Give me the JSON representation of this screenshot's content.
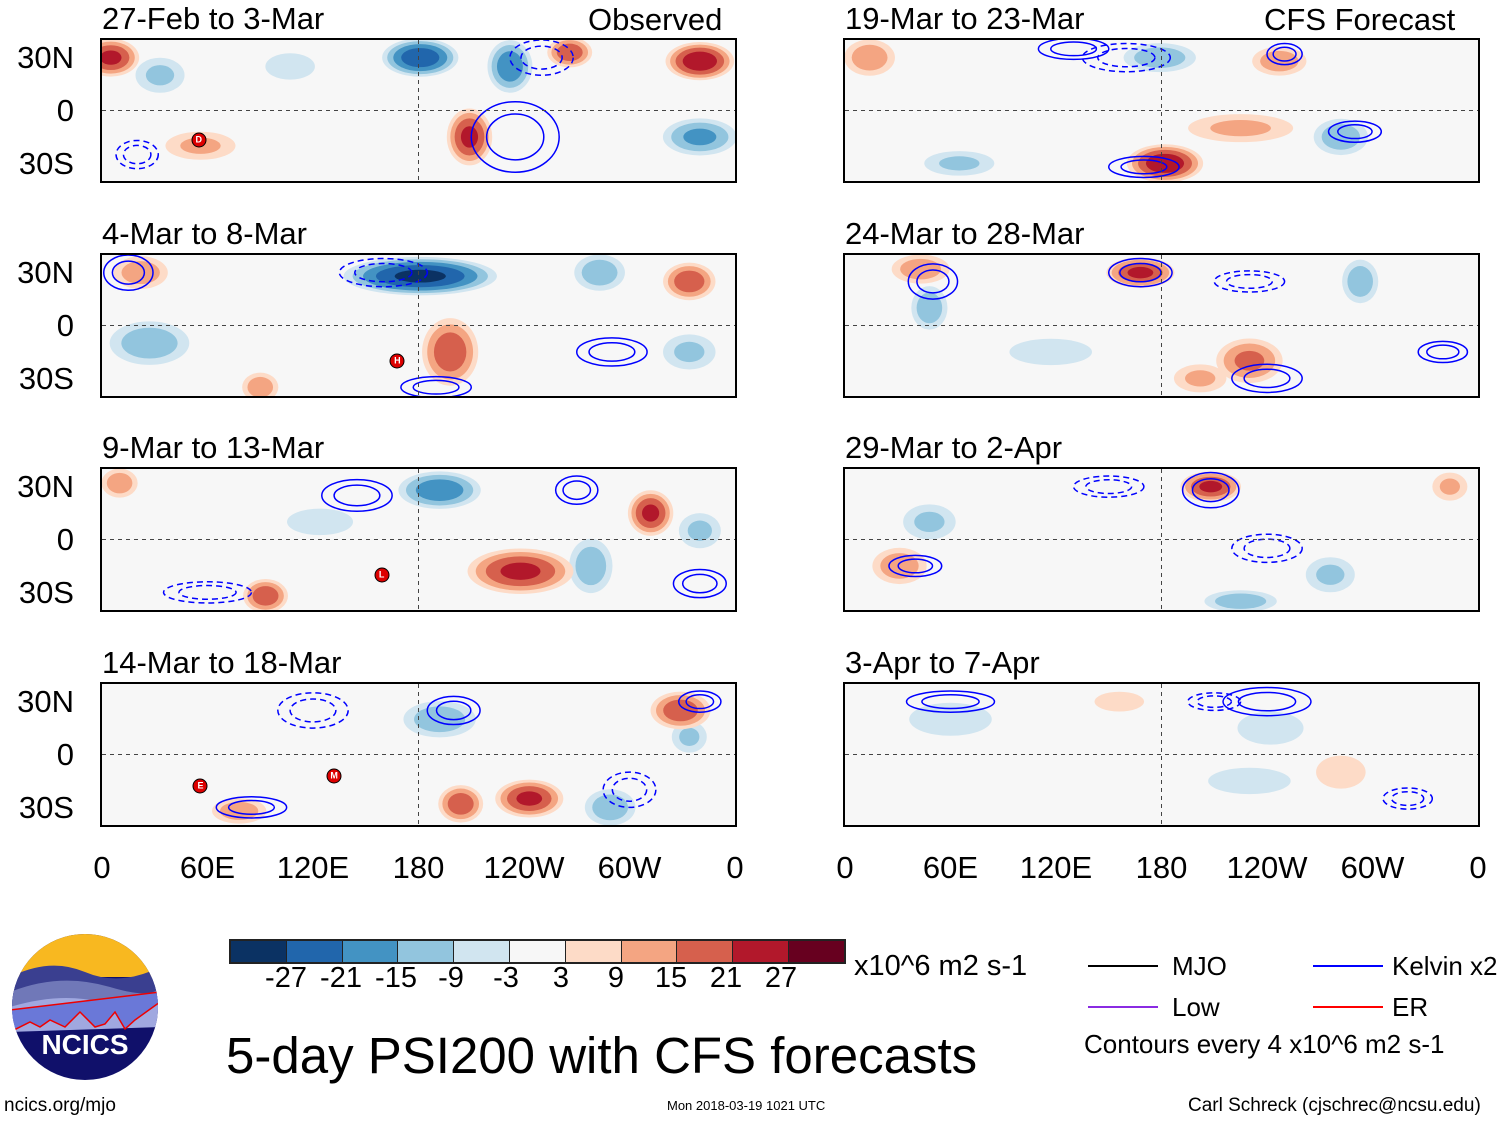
{
  "titles": {
    "observed": "Observed",
    "forecast": "CFS Forecast",
    "main": "5-day PSI200 with CFS forecasts"
  },
  "lat_labels": [
    "30N",
    "0",
    "30S"
  ],
  "lon_labels": [
    "0",
    "60E",
    "120E",
    "180",
    "120W",
    "60W",
    "0"
  ],
  "colorbar": {
    "colors": [
      "#0b3263",
      "#2166ac",
      "#4393c3",
      "#92c5de",
      "#d1e5f0",
      "#f7f7f7",
      "#fddbc7",
      "#f4a582",
      "#d6604d",
      "#b2182b",
      "#67001f"
    ],
    "labels": [
      "-27",
      "-21",
      "-15",
      "-9",
      "-3",
      "3",
      "9",
      "15",
      "21",
      "27"
    ],
    "units": "x10^6 m2 s-1"
  },
  "legend": {
    "items": [
      {
        "label": "MJO",
        "color": "#000000"
      },
      {
        "label": "Kelvin x2",
        "color": "#0000ff"
      },
      {
        "label": "Low",
        "color": "#8a2be2"
      },
      {
        "label": "ER",
        "color": "#ff0000"
      }
    ],
    "note": "Contours every 4 x10^6 m2 s-1"
  },
  "footer": {
    "url": "ncics.org/mjo",
    "timestamp": "Mon 2018-03-19 1021 UTC",
    "author": "Carl Schreck (cjschrec@ncsu.edu)"
  },
  "logo_text": "NCICS",
  "chart_data": {
    "type": "heatmap",
    "variable": "200-hPa streamfunction anomaly",
    "lon_range": [
      0,
      360
    ],
    "lat_range": [
      -40,
      40
    ],
    "panels": [
      {
        "title": "27-Feb to 3-Mar",
        "kind": "observed",
        "anomalies": [
          [
            5,
            30,
            24,
            15,
            10
          ],
          [
            181,
            30,
            -27,
            20,
            10
          ],
          [
            340,
            28,
            27,
            18,
            10
          ],
          [
            209,
            -15,
            24,
            12,
            15
          ],
          [
            232,
            25,
            -21,
            12,
            14
          ],
          [
            266,
            33,
            21,
            12,
            8
          ],
          [
            340,
            -15,
            -18,
            20,
            10
          ],
          [
            56,
            -20,
            12,
            20,
            8
          ],
          [
            33,
            20,
            -12,
            14,
            10
          ],
          [
            107,
            25,
            -9,
            15,
            8
          ]
        ],
        "contours": [
          [
            235,
            -15,
            25,
            20,
            1
          ],
          [
            250,
            30,
            18,
            10,
            -1
          ],
          [
            20,
            -25,
            12,
            8,
            -1
          ]
        ],
        "storms": [
          {
            "label": "D",
            "lon": 55,
            "lat": -17
          }
        ]
      },
      {
        "title": "4-Mar to 8-Mar",
        "kind": "observed",
        "anomalies": [
          [
            181,
            28,
            -30,
            40,
            10
          ],
          [
            22,
            30,
            15,
            15,
            9
          ],
          [
            334,
            25,
            21,
            14,
            10
          ],
          [
            198,
            -15,
            21,
            15,
            18
          ],
          [
            27,
            -10,
            -15,
            22,
            12
          ],
          [
            90,
            -35,
            15,
            10,
            8
          ],
          [
            283,
            30,
            -15,
            14,
            10
          ],
          [
            334,
            -15,
            -12,
            15,
            10
          ]
        ],
        "contours": [
          [
            15,
            30,
            14,
            10,
            1
          ],
          [
            160,
            30,
            25,
            8,
            -1
          ],
          [
            290,
            -15,
            20,
            8,
            1
          ],
          [
            190,
            -35,
            20,
            6,
            1
          ]
        ],
        "storms": [
          {
            "label": "H",
            "lon": 168,
            "lat": -20
          }
        ]
      },
      {
        "title": "9-Mar to 13-Mar",
        "kind": "observed",
        "anomalies": [
          [
            10,
            32,
            15,
            10,
            8
          ],
          [
            192,
            28,
            -21,
            22,
            10
          ],
          [
            312,
            15,
            24,
            12,
            12
          ],
          [
            238,
            -18,
            24,
            28,
            12
          ],
          [
            93,
            -32,
            21,
            12,
            9
          ],
          [
            278,
            -15,
            -15,
            12,
            15
          ],
          [
            124,
            10,
            -9,
            20,
            8
          ],
          [
            340,
            5,
            -12,
            12,
            10
          ]
        ],
        "contours": [
          [
            145,
            25,
            20,
            9,
            1
          ],
          [
            270,
            28,
            12,
            8,
            1
          ],
          [
            60,
            -30,
            25,
            6,
            -1
          ],
          [
            340,
            -25,
            15,
            8,
            1
          ]
        ],
        "storms": [
          {
            "label": "L",
            "lon": 159,
            "lat": -20
          }
        ]
      },
      {
        "title": "14-Mar to 18-Mar",
        "kind": "observed",
        "anomalies": [
          [
            329,
            25,
            21,
            16,
            10
          ],
          [
            243,
            -25,
            24,
            18,
            10
          ],
          [
            204,
            -28,
            21,
            12,
            10
          ],
          [
            192,
            20,
            -15,
            20,
            10
          ],
          [
            289,
            -30,
            -15,
            14,
            10
          ],
          [
            78,
            -32,
            15,
            15,
            7
          ],
          [
            334,
            10,
            -12,
            10,
            9
          ]
        ],
        "contours": [
          [
            200,
            25,
            15,
            8,
            1
          ],
          [
            85,
            -30,
            20,
            6,
            1
          ],
          [
            120,
            25,
            20,
            10,
            -1
          ],
          [
            340,
            30,
            12,
            6,
            1
          ],
          [
            300,
            -20,
            15,
            10,
            -1
          ]
        ],
        "storms": [
          {
            "label": "E",
            "lon": 56,
            "lat": -18
          },
          {
            "label": "M",
            "lon": 132,
            "lat": -12
          }
        ]
      },
      {
        "title": "19-Mar to 23-Mar",
        "kind": "forecast",
        "anomalies": [
          [
            14,
            30,
            15,
            14,
            10
          ],
          [
            179,
            30,
            -15,
            20,
            8
          ],
          [
            182,
            -30,
            27,
            20,
            10
          ],
          [
            247,
            28,
            15,
            15,
            8
          ],
          [
            282,
            -15,
            -15,
            15,
            10
          ],
          [
            65,
            -30,
            -12,
            20,
            7
          ],
          [
            225,
            -10,
            12,
            30,
            8
          ]
        ],
        "contours": [
          [
            160,
            30,
            25,
            8,
            -1
          ],
          [
            130,
            35,
            20,
            6,
            1
          ],
          [
            290,
            -12,
            15,
            6,
            1
          ],
          [
            170,
            -32,
            20,
            6,
            1
          ],
          [
            250,
            32,
            10,
            6,
            1
          ]
        ],
        "storms": []
      },
      {
        "title": "24-Mar to 28-Mar",
        "kind": "forecast",
        "anomalies": [
          [
            43,
            32,
            15,
            16,
            8
          ],
          [
            48,
            10,
            -15,
            10,
            12
          ],
          [
            168,
            30,
            24,
            18,
            8
          ],
          [
            230,
            -20,
            18,
            18,
            12
          ],
          [
            293,
            25,
            -15,
            10,
            12
          ],
          [
            117,
            -15,
            -9,
            25,
            8
          ],
          [
            202,
            -30,
            12,
            15,
            8
          ]
        ],
        "contours": [
          [
            168,
            30,
            18,
            8,
            1
          ],
          [
            240,
            -30,
            20,
            8,
            1
          ],
          [
            50,
            25,
            14,
            10,
            1
          ],
          [
            340,
            -15,
            14,
            6,
            1
          ],
          [
            230,
            25,
            20,
            6,
            -1
          ]
        ],
        "storms": []
      },
      {
        "title": "29-Mar to 2-Apr",
        "kind": "forecast",
        "anomalies": [
          [
            208,
            30,
            24,
            16,
            8
          ],
          [
            48,
            10,
            -12,
            15,
            10
          ],
          [
            31,
            -15,
            15,
            15,
            10
          ],
          [
            225,
            -35,
            -15,
            20,
            6
          ],
          [
            344,
            30,
            12,
            10,
            8
          ],
          [
            276,
            -20,
            -12,
            14,
            10
          ]
        ],
        "contours": [
          [
            208,
            28,
            16,
            10,
            1
          ],
          [
            150,
            30,
            20,
            6,
            -1
          ],
          [
            40,
            -15,
            15,
            6,
            1
          ],
          [
            240,
            -5,
            20,
            8,
            -1
          ]
        ],
        "storms": []
      },
      {
        "title": "3-Apr to 7-Apr",
        "kind": "forecast",
        "anomalies": [
          [
            242,
            15,
            -9,
            20,
            10
          ],
          [
            156,
            30,
            9,
            15,
            6
          ],
          [
            230,
            -15,
            -9,
            25,
            8
          ],
          [
            282,
            -10,
            9,
            15,
            10
          ],
          [
            60,
            20,
            -9,
            25,
            10
          ]
        ],
        "contours": [
          [
            240,
            30,
            25,
            8,
            1
          ],
          [
            210,
            30,
            15,
            5,
            -1
          ],
          [
            320,
            -25,
            14,
            6,
            -1
          ],
          [
            60,
            30,
            25,
            6,
            1
          ]
        ],
        "storms": []
      }
    ]
  }
}
